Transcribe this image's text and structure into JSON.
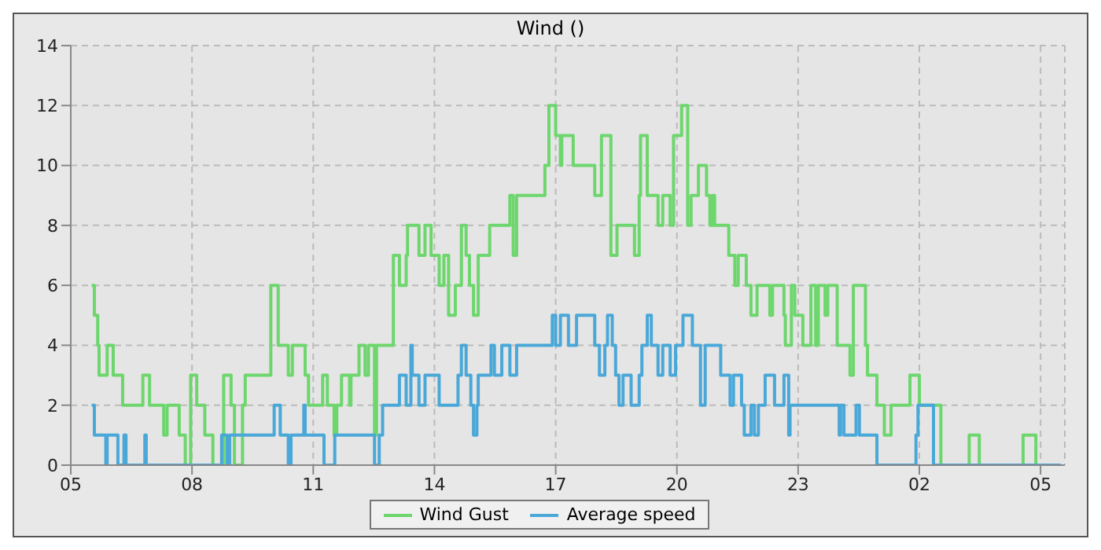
{
  "chart_data": {
    "type": "step",
    "title": "Wind ()",
    "xlim": [
      "--01-01T05:00",
      "--01-02T05:36"
    ],
    "xticks": [
      {
        "value": "--01-01T05:00",
        "label": "05"
      },
      {
        "value": "--01-01T08:00",
        "label": "08"
      },
      {
        "value": "--01-01T11:00",
        "label": "11"
      },
      {
        "value": "--01-01T14:00",
        "label": "14"
      },
      {
        "value": "--01-01T17:00",
        "label": "17"
      },
      {
        "value": "--01-01T20:00",
        "label": "20"
      },
      {
        "value": "--01-01T23:00",
        "label": "23"
      },
      {
        "value": "--01-02T02:00",
        "label": "02"
      },
      {
        "value": "--01-02T05:00",
        "label": "05"
      }
    ],
    "ylim": [
      0,
      14
    ],
    "yticks": [
      0,
      2,
      4,
      6,
      8,
      10,
      12,
      14
    ],
    "grid": true,
    "legend": "bottom",
    "line_style": "solid",
    "marker": "none",
    "series": [
      {
        "name": "Wind Gust",
        "color": "#6dd66d",
        "x": [
          "--01-01T05:31",
          "--01-01T05:35",
          "--01-01T05:40",
          "--01-01T05:42",
          "--01-01T05:54",
          "--01-01T06:03",
          "--01-01T06:17",
          "--01-01T06:47",
          "--01-01T06:57",
          "--01-01T07:18",
          "--01-01T07:23",
          "--01-01T07:41",
          "--01-01T07:50",
          "--01-01T07:58",
          "--01-01T08:07",
          "--01-01T08:19",
          "--01-01T08:31",
          "--01-01T08:47",
          "--01-01T08:58",
          "--01-01T09:03",
          "--01-01T09:15",
          "--01-01T09:19",
          "--01-01T09:57",
          "--01-01T10:08",
          "--01-01T10:23",
          "--01-01T10:29",
          "--01-01T10:48",
          "--01-01T10:53",
          "--01-01T11:14",
          "--01-01T11:21",
          "--01-01T11:31",
          "--01-01T11:35",
          "--01-01T11:42",
          "--01-01T11:54",
          "--01-01T11:56",
          "--01-01T12:08",
          "--01-01T12:17",
          "--01-01T12:22",
          "--01-01T12:31",
          "--01-01T12:34",
          "--01-01T12:59",
          "--01-01T13:08",
          "--01-01T13:18",
          "--01-01T13:20",
          "--01-01T13:37",
          "--01-01T13:46",
          "--01-01T13:55",
          "--01-01T14:07",
          "--01-01T14:14",
          "--01-01T14:21",
          "--01-01T14:31",
          "--01-01T14:40",
          "--01-01T14:47",
          "--01-01T14:52",
          "--01-01T14:58",
          "--01-01T15:05",
          "--01-01T15:22",
          "--01-01T15:52",
          "--01-01T15:57",
          "--01-01T16:02",
          "--01-01T16:44",
          "--01-01T16:50",
          "--01-01T17:00",
          "--01-01T17:07",
          "--01-01T17:09",
          "--01-01T17:26",
          "--01-01T17:58",
          "--01-01T18:08",
          "--01-01T18:22",
          "--01-01T18:31",
          "--01-01T18:57",
          "--01-01T19:04",
          "--01-01T19:06",
          "--01-01T19:16",
          "--01-01T19:32",
          "--01-01T19:39",
          "--01-01T19:50",
          "--01-01T19:55",
          "--01-01T20:07",
          "--01-01T20:16",
          "--01-01T20:21",
          "--01-01T20:32",
          "--01-01T20:44",
          "--01-01T20:49",
          "--01-01T20:53",
          "--01-01T20:56",
          "--01-01T21:17",
          "--01-01T21:26",
          "--01-01T21:31",
          "--01-01T21:43",
          "--01-01T21:50",
          "--01-01T21:59",
          "--01-01T22:18",
          "--01-01T22:22",
          "--01-01T22:39",
          "--01-01T22:41",
          "--01-01T22:50",
          "--01-01T22:55",
          "--01-01T23:07",
          "--01-01T23:19",
          "--01-01T23:26",
          "--01-01T23:30",
          "--01-01T23:40",
          "--01-01T23:44",
          "--01-01T23:58",
          "--01-02T00:17",
          "--01-02T00:22",
          "--01-02T00:40",
          "--01-02T00:43",
          "--01-02T00:57",
          "--01-02T01:08",
          "--01-02T01:18",
          "--01-02T01:46",
          "--01-02T02:00",
          "--01-02T02:32",
          "--01-02T03:14",
          "--01-02T03:29",
          "--01-02T04:34",
          "--01-02T04:53",
          "--01-02T05:30"
        ],
        "values": [
          6,
          5,
          4,
          3,
          4,
          3,
          2,
          3,
          2,
          1,
          2,
          1,
          0,
          3,
          2,
          1,
          0,
          3,
          2,
          0,
          2,
          3,
          6,
          4,
          3,
          4,
          3,
          2,
          3,
          2,
          1,
          2,
          3,
          2,
          3,
          4,
          3,
          4,
          1,
          4,
          7,
          6,
          7,
          8,
          7,
          8,
          7,
          6,
          7,
          5,
          6,
          8,
          7,
          6,
          5,
          7,
          8,
          9,
          7,
          9,
          10,
          12,
          11,
          10,
          11,
          10,
          9,
          11,
          7,
          8,
          7,
          9,
          11,
          9,
          8,
          9,
          8,
          11,
          12,
          8,
          9,
          10,
          9,
          8,
          9,
          8,
          7,
          6,
          7,
          6,
          5,
          6,
          5,
          6,
          5,
          4,
          6,
          5,
          4,
          6,
          4,
          6,
          5,
          6,
          4,
          3,
          6,
          4,
          3,
          2,
          1,
          2,
          3,
          2,
          0,
          1,
          0,
          1,
          0,
          0
        ]
      },
      {
        "name": "Average speed",
        "color": "#4aa8d8",
        "x": [
          "--01-01T05:31",
          "--01-01T05:35",
          "--01-01T05:52",
          "--01-01T05:54",
          "--01-01T06:10",
          "--01-01T06:19",
          "--01-01T06:22",
          "--01-01T06:50",
          "--01-01T06:52",
          "--01-01T08:44",
          "--01-01T08:52",
          "--01-01T08:56",
          "--01-01T10:02",
          "--01-01T10:11",
          "--01-01T10:23",
          "--01-01T10:27",
          "--01-01T10:46",
          "--01-01T10:48",
          "--01-01T11:16",
          "--01-01T11:32",
          "--01-01T12:31",
          "--01-01T12:38",
          "--01-01T12:43",
          "--01-01T13:08",
          "--01-01T13:18",
          "--01-01T13:25",
          "--01-01T13:27",
          "--01-01T13:37",
          "--01-01T13:46",
          "--01-01T14:07",
          "--01-01T14:35",
          "--01-01T14:40",
          "--01-01T14:47",
          "--01-01T14:54",
          "--01-01T14:58",
          "--01-01T15:03",
          "--01-01T15:05",
          "--01-01T15:24",
          "--01-01T15:29",
          "--01-01T15:40",
          "--01-01T15:52",
          "--01-01T16:02",
          "--01-01T16:55",
          "--01-01T17:00",
          "--01-01T17:07",
          "--01-01T17:19",
          "--01-01T17:31",
          "--01-01T17:58",
          "--01-01T18:05",
          "--01-01T18:13",
          "--01-01T18:17",
          "--01-01T18:24",
          "--01-01T18:29",
          "--01-01T18:34",
          "--01-01T18:40",
          "--01-01T18:52",
          "--01-01T19:04",
          "--01-01T19:08",
          "--01-01T19:16",
          "--01-01T19:22",
          "--01-01T19:32",
          "--01-01T19:39",
          "--01-01T19:50",
          "--01-01T19:58",
          "--01-01T20:09",
          "--01-01T20:23",
          "--01-01T20:35",
          "--01-01T20:42",
          "--01-01T21:05",
          "--01-01T21:19",
          "--01-01T21:24",
          "--01-01T21:36",
          "--01-01T21:40",
          "--01-01T21:50",
          "--01-01T21:55",
          "--01-01T22:01",
          "--01-01T22:11",
          "--01-01T22:25",
          "--01-01T22:39",
          "--01-01T22:46",
          "--01-01T22:48",
          "--01-02T00:01",
          "--01-02T00:03",
          "--01-02T00:08",
          "--01-02T00:26",
          "--01-02T00:31",
          "--01-02T00:57",
          "--01-02T01:55",
          "--01-02T01:58",
          "--01-02T02:21",
          "--01-02T05:30"
        ],
        "values": [
          2,
          1,
          0,
          1,
          0,
          1,
          0,
          1,
          0,
          1,
          0,
          1,
          2,
          1,
          0,
          1,
          2,
          1,
          0,
          1,
          0,
          1,
          2,
          3,
          2,
          4,
          3,
          2,
          3,
          2,
          3,
          4,
          3,
          2,
          1,
          2,
          3,
          4,
          3,
          4,
          3,
          4,
          5,
          4,
          5,
          4,
          5,
          4,
          3,
          4,
          5,
          4,
          3,
          2,
          3,
          2,
          3,
          4,
          5,
          4,
          3,
          4,
          3,
          4,
          5,
          4,
          2,
          4,
          3,
          2,
          3,
          2,
          1,
          2,
          1,
          2,
          3,
          2,
          3,
          1,
          2,
          1,
          2,
          1,
          2,
          1,
          0,
          1,
          2,
          0,
          0
        ]
      }
    ]
  }
}
